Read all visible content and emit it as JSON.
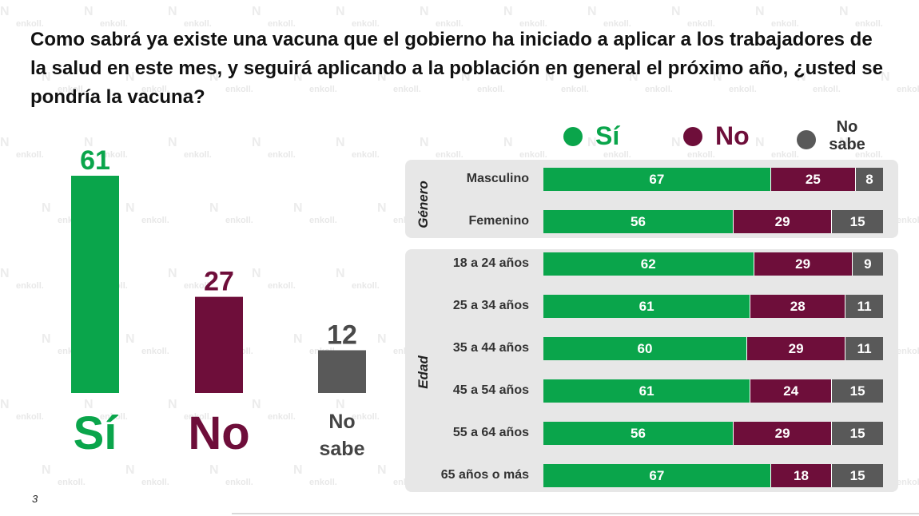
{
  "title": "Como sabrá ya existe una vacuna que el gobierno ha iniciado a aplicar a los trabajadores de la salud en este mes, y seguirá aplicando a la población en general el próximo año, ¿usted se pondría la vacuna?",
  "page_number": "3",
  "watermark": "enkoll.",
  "colors": {
    "si": "#0aa54b",
    "no": "#6e0e3a",
    "nosabe": "#595959",
    "panel": "#e7e7e7"
  },
  "legend": [
    {
      "label": "Sí",
      "color": "#0aa54b"
    },
    {
      "label": "No",
      "color": "#6e0e3a"
    },
    {
      "label": "No sabe",
      "color": "#595959"
    }
  ],
  "chart_data": [
    {
      "type": "bar",
      "categories": [
        "Sí",
        "No",
        "No sabe"
      ],
      "values": [
        61,
        27,
        12
      ],
      "ylim": [
        0,
        61
      ]
    },
    {
      "type": "bar",
      "orientation": "horizontal",
      "stacked": true,
      "groups": [
        "Género",
        "Edad"
      ],
      "categories": [
        "Masculino",
        "Femenino",
        "18 a 24 años",
        "25 a 34 años",
        "35 a 44 años",
        "45 a 54 años",
        "55 a 64 años",
        "65 años o más"
      ],
      "category_group": [
        "Género",
        "Género",
        "Edad",
        "Edad",
        "Edad",
        "Edad",
        "Edad",
        "Edad"
      ],
      "series": [
        {
          "name": "Sí",
          "values": [
            67,
            56,
            62,
            61,
            60,
            61,
            56,
            67
          ]
        },
        {
          "name": "No",
          "values": [
            25,
            29,
            29,
            28,
            29,
            24,
            29,
            18
          ]
        },
        {
          "name": "No sabe",
          "values": [
            8,
            15,
            9,
            11,
            11,
            15,
            15,
            15
          ]
        }
      ]
    }
  ]
}
